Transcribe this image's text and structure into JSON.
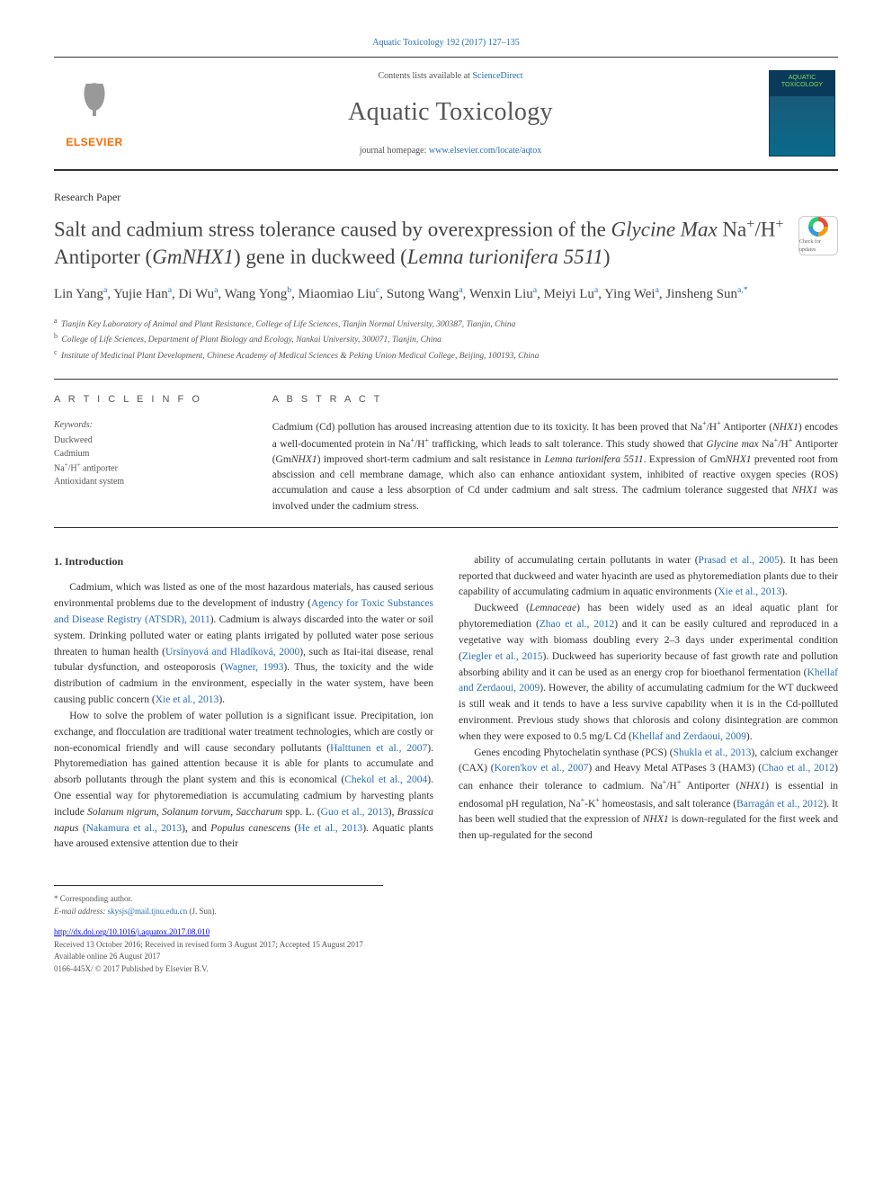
{
  "header": {
    "topLink": "Aquatic Toxicology 192 (2017) 127–135",
    "contentsPrefix": "Contents lists available at ",
    "contentsLink": "ScienceDirect",
    "journalTitle": "Aquatic Toxicology",
    "homepagePrefix": "journal homepage: ",
    "homepageLink": "www.elsevier.com/locate/aqtox",
    "elsevier": "ELSEVIER",
    "coverLine1": "AQUATIC",
    "coverLine2": "TOXICOLOGY"
  },
  "article": {
    "type": "Research Paper",
    "titleParts": {
      "p1": "Salt and cadmium stress tolerance caused by overexpression of the ",
      "em1": "Glycine Max",
      "p2": " Na",
      "sup1": "+",
      "p3": "/H",
      "sup2": "+",
      "p4": " Antiporter (",
      "em2": "GmNHX1",
      "p5": ") gene in duckweed (",
      "em3": "Lemna turionifera 5511",
      "p6": ")"
    },
    "crossmark": "Check for updates",
    "authorsLine": "Lin Yang|a|, Yujie Han|a|, Di Wu|a|, Wang Yong|b|, Miaomiao Liu|c|, Sutong Wang|a|, Wenxin Liu|a|, Meiyi Lu|a|, Ying Wei|a|, Jinsheng Sun|a,*|",
    "affiliations": [
      {
        "label": "a",
        "text": "Tianjin Key Laboratory of Animal and Plant Resistance, College of Life Sciences, Tianjin Normal University, 300387, Tianjin, China"
      },
      {
        "label": "b",
        "text": "College of Life Sciences, Department of Plant Biology and Ecology, Nankai University, 300071, Tianjin, China"
      },
      {
        "label": "c",
        "text": "Institute of Medicinal Plant Development, Chinese Academy of Medical Sciences & Peking Union Medical College, Beijing, 100193, China"
      }
    ]
  },
  "info": {
    "heading": "A R T I C L E  I N F O",
    "keywordsLabel": "Keywords:",
    "keywords": [
      "Duckweed",
      "Cadmium",
      "Na+/H+ antiporter",
      "Antioxidant system"
    ]
  },
  "abstract": {
    "heading": "A B S T R A C T",
    "text": "Cadmium (Cd) pollution has aroused increasing attention due to its toxicity. It has been proved that Na+/H+ Antiporter (NHX1) encodes a well-documented protein in Na+/H+ trafficking, which leads to salt tolerance. This study showed that Glycine max Na+/H+ Antiporter (GmNHX1) improved short-term cadmium and salt resistance in Lemna turionifera 5511. Expression of GmNHX1 prevented root from abscission and cell membrane damage, which also can enhance antioxidant system, inhibited of reactive oxygen species (ROS) accumulation and cause a less absorption of Cd under cadmium and salt stress. The cadmium tolerance suggested that NHX1 was involved under the cadmium stress."
  },
  "body": {
    "heading": "1. Introduction",
    "left": [
      "Cadmium, which was listed as one of the most hazardous materials, has caused serious environmental problems due to the development of industry (|Agency for Toxic Substances and Disease Registry (ATSDR), 2011|). Cadmium is always discarded into the water or soil system. Drinking polluted water or eating plants irrigated by polluted water pose serious threaten to human health (|Ursínyová and Hladíková, 2000|), such as Itai-itai disease, renal tubular dysfunction, and osteoporosis (|Wagner, 1993|). Thus, the toxicity and the wide distribution of cadmium in the environment, especially in the water system, have been causing public concern (|Xie et al., 2013|).",
      "How to solve the problem of water pollution is a significant issue. Precipitation, ion exchange, and flocculation are traditional water treatment technologies, which are costly or non-economical friendly and will cause secondary pollutants (|Halttunen et al., 2007|). Phytoremediation has gained attention because it is able for plants to accumulate and absorb pollutants through the plant system and this is economical (|Chekol et al., 2004|). One essential way for phytoremediation is accumulating cadmium by harvesting plants include ~Solanum nigrum, Solanum torvum, Saccharum~ spp. L. (|Guo et al., 2013|), ~Brassica napus~ (|Nakamura et al., 2013|), and ~Populus canescens~ (|He et al., 2013|). Aquatic plants have aroused extensive attention due to their"
    ],
    "right": [
      "ability of accumulating certain pollutants in water (|Prasad et al., 2005|). It has been reported that duckweed and water hyacinth are used as phytoremediation plants due to their capability of accumulating cadmium in aquatic environments (|Xie et al., 2013|).",
      "Duckweed (~Lemnaceae~) has been widely used as an ideal aquatic plant for phytoremediation (|Zhao et al., 2012|) and it can be easily cultured and reproduced in a vegetative way with biomass doubling every 2–3 days under experimental condition (|Ziegler et al., 2015|). Duckweed has superiority because of fast growth rate and pollution absorbing ability and it can be used as an energy crop for bioethanol fermentation (|Khellaf and Zerdaoui, 2009|). However, the ability of accumulating cadmium for the WT duckweed is still weak and it tends to have a less survive capability when it is in the Cd-pollluted environment. Previous study shows that chlorosis and colony disintegration are common when they were exposed to 0.5 mg/L Cd (|Khellaf and Zerdaoui, 2009|).",
      "Genes encoding Phytochelatin synthase (PCS) (|Shukla et al., 2013|), calcium exchanger (CAX) (|Koren'kov et al., 2007|) and Heavy Metal ATPases 3 (HAM3) (|Chao et al., 2012|) can enhance their tolerance to cadmium. Na+/H+ Antiporter (~NHX1~) is essential in endosomal pH regulation, Na+-K+ homeostasis, and salt tolerance (|Barragán et al., 2012|). It has been well studied that the expression of ~NHX1~ is down-regulated for the first week and then up-regulated for the second"
    ]
  },
  "footer": {
    "corrLabel": "* Corresponding author.",
    "emailLabel": "E-mail address: ",
    "email": "skysjs@mail.tjnu.edu.cn",
    "emailSuffix": " (J. Sun).",
    "doi": "http://dx.doi.org/10.1016/j.aquatox.2017.08.010",
    "received": "Received 13 October 2016; Received in revised form 3 August 2017; Accepted 15 August 2017",
    "online": "Available online 26 August 2017",
    "copyright": "0166-445X/ © 2017 Published by Elsevier B.V."
  },
  "colors": {
    "link": "#2a6ebb",
    "elsevierOrange": "#ff6b00",
    "text": "#333333",
    "muted": "#555555",
    "rule": "#333333"
  }
}
